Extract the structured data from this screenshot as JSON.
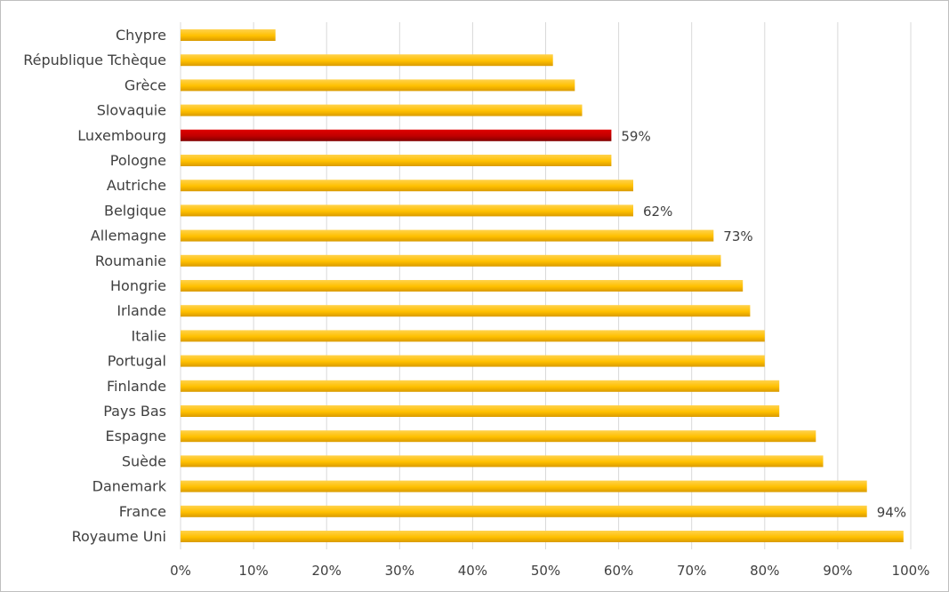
{
  "chart_data": {
    "type": "bar",
    "orientation": "horizontal",
    "title": "",
    "xlabel": "",
    "ylabel": "",
    "xlim": [
      0,
      100
    ],
    "ticks": [
      "0%",
      "10%",
      "20%",
      "30%",
      "40%",
      "50%",
      "60%",
      "70%",
      "80%",
      "90%",
      "100%"
    ],
    "grid": true,
    "legend": "none",
    "categories": [
      "Chypre",
      "République Tchèque",
      "Grèce",
      "Slovaquie",
      "Luxembourg",
      "Pologne",
      "Autriche",
      "Belgique",
      "Allemagne",
      "Roumanie",
      "Hongrie",
      "Irlande",
      "Italie",
      "Portugal",
      "Finlande",
      "Pays Bas",
      "Espagne",
      "Suède",
      "Danemark",
      "France",
      "Royaume Uni"
    ],
    "values": [
      13,
      51,
      54,
      55,
      59,
      59,
      62,
      62,
      73,
      74,
      77,
      78,
      80,
      80,
      82,
      82,
      87,
      88,
      94,
      94,
      99
    ],
    "data_labels": {
      "Luxembourg": "59%",
      "Belgique": "62%",
      "Allemagne": "73%",
      "France": "94%"
    },
    "highlight": "Luxembourg",
    "colors": {
      "bar": "#ffc000",
      "bar_dark": "#d99a00",
      "highlight": "#c00000",
      "highlight_dark": "#7f0000",
      "grid": "#d9d9d9",
      "text": "#404040"
    }
  }
}
